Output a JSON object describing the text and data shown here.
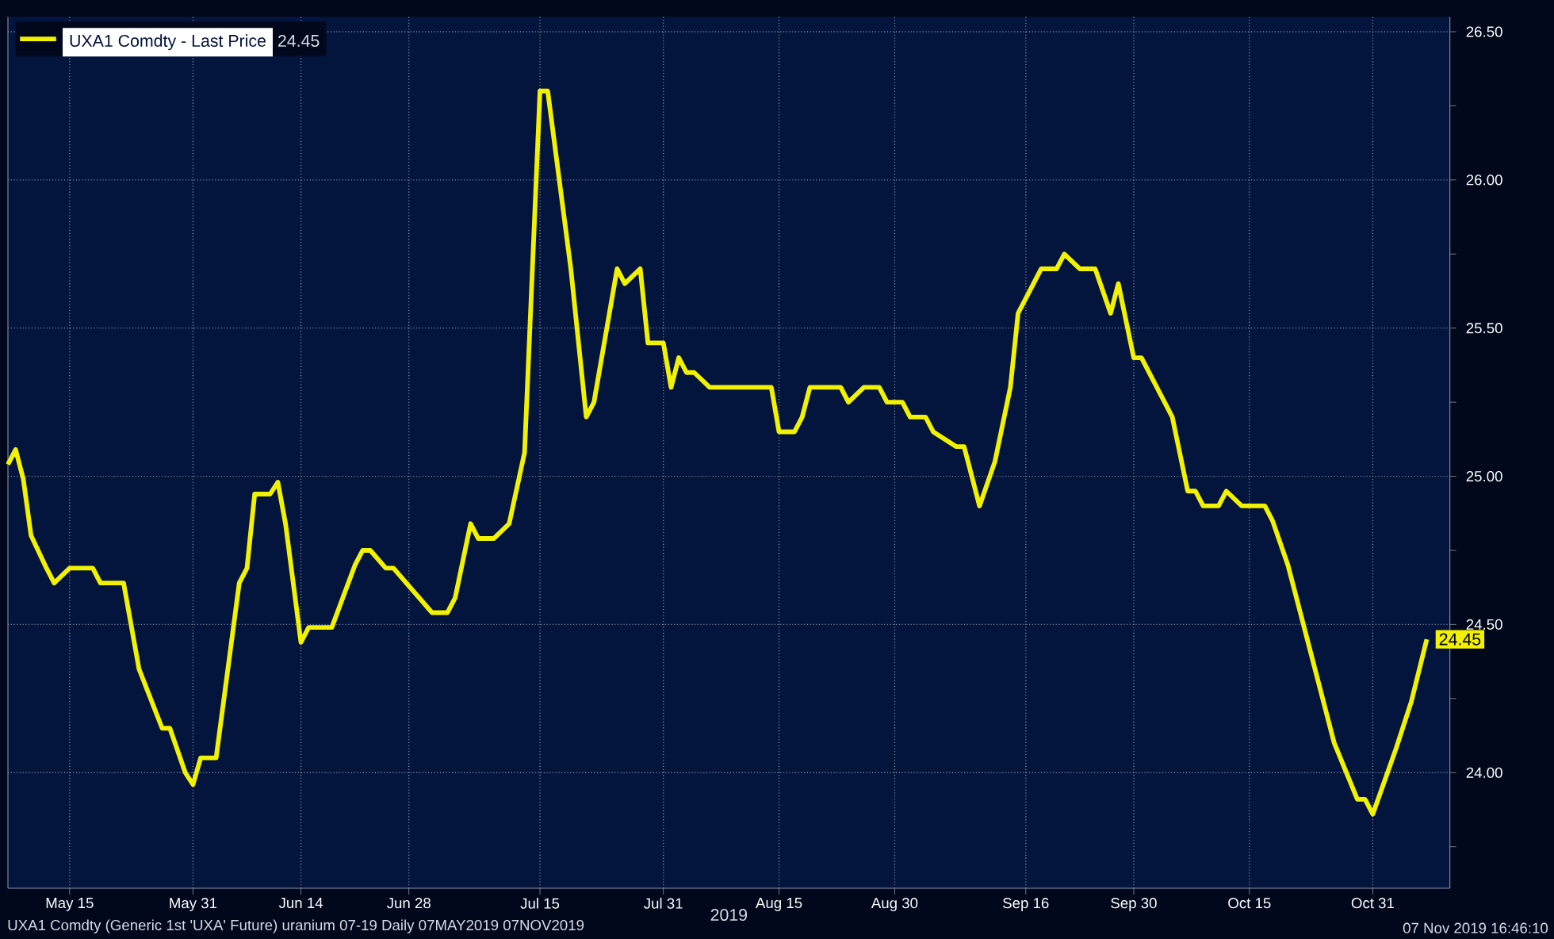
{
  "chart_data": {
    "type": "line",
    "xlabel": "2019",
    "legend": "top left",
    "grid": true,
    "xlim": [
      "2019-05-07",
      "2019-11-10"
    ],
    "ylim": [
      23.61,
      26.55
    ],
    "xticks": [
      {
        "value": "2019-05-15",
        "label": "May 15"
      },
      {
        "value": "2019-05-31",
        "label": "May 31"
      },
      {
        "value": "2019-06-14",
        "label": "Jun 14"
      },
      {
        "value": "2019-06-28",
        "label": "Jun 28"
      },
      {
        "value": "2019-07-15",
        "label": "Jul 15"
      },
      {
        "value": "2019-07-31",
        "label": "Jul 31"
      },
      {
        "value": "2019-08-15",
        "label": "Aug 15"
      },
      {
        "value": "2019-08-30",
        "label": "Aug 30"
      },
      {
        "value": "2019-09-16",
        "label": "Sep 16"
      },
      {
        "value": "2019-09-30",
        "label": "Sep 30"
      },
      {
        "value": "2019-10-15",
        "label": "Oct 15"
      },
      {
        "value": "2019-10-31",
        "label": "Oct 31"
      }
    ],
    "yticks": [
      {
        "value": 23.75,
        "label": null
      },
      {
        "value": 24,
        "label": "24.00"
      },
      {
        "value": 24.25,
        "label": null
      },
      {
        "value": 24.5,
        "label": "24.50"
      },
      {
        "value": 24.75,
        "label": null
      },
      {
        "value": 25,
        "label": "25.00"
      },
      {
        "value": 25.25,
        "label": null
      },
      {
        "value": 25.5,
        "label": "25.50"
      },
      {
        "value": 25.75,
        "label": null
      },
      {
        "value": 26,
        "label": "26.00"
      },
      {
        "value": 26.25,
        "label": null
      },
      {
        "value": 26.5,
        "label": "26.50"
      }
    ],
    "annotations": [
      "UXA1 Comdty (Generic 1st 'UXA' Future) uranium 07-19  Daily 07MAY2019 07NOV2019",
      "07 Nov 2019 16:46:10"
    ],
    "series": [
      {
        "name": "UXA1 Comdty - Last Price",
        "color": "#f2f200",
        "x": [
          "2019-05-07",
          "2019-05-08",
          "2019-05-09",
          "2019-05-10",
          "2019-05-12",
          "2019-05-13",
          "2019-05-15",
          "2019-05-18",
          "2019-05-19",
          "2019-05-22",
          "2019-05-24",
          "2019-05-27",
          "2019-05-28",
          "2019-05-30",
          "2019-05-31",
          "2019-06-01",
          "2019-06-03",
          "2019-06-06",
          "2019-06-07",
          "2019-06-08",
          "2019-06-10",
          "2019-06-11",
          "2019-06-12",
          "2019-06-14",
          "2019-06-15",
          "2019-06-18",
          "2019-06-21",
          "2019-06-22",
          "2019-06-23",
          "2019-06-25",
          "2019-06-26",
          "2019-07-01",
          "2019-07-03",
          "2019-07-04",
          "2019-07-06",
          "2019-07-07",
          "2019-07-09",
          "2019-07-11",
          "2019-07-13",
          "2019-07-15",
          "2019-07-16",
          "2019-07-19",
          "2019-07-21",
          "2019-07-22",
          "2019-07-24",
          "2019-07-25",
          "2019-07-26",
          "2019-07-28",
          "2019-07-29",
          "2019-07-31",
          "2019-08-01",
          "2019-08-02",
          "2019-08-03",
          "2019-08-04",
          "2019-08-06",
          "2019-08-14",
          "2019-08-15",
          "2019-08-17",
          "2019-08-18",
          "2019-08-19",
          "2019-08-23",
          "2019-08-24",
          "2019-08-26",
          "2019-08-28",
          "2019-08-29",
          "2019-08-31",
          "2019-09-01",
          "2019-09-03",
          "2019-09-04",
          "2019-09-07",
          "2019-09-08",
          "2019-09-10",
          "2019-09-12",
          "2019-09-14",
          "2019-09-15",
          "2019-09-17",
          "2019-09-18",
          "2019-09-20",
          "2019-09-21",
          "2019-09-23",
          "2019-09-25",
          "2019-09-27",
          "2019-09-28",
          "2019-09-30",
          "2019-10-01",
          "2019-10-02",
          "2019-10-04",
          "2019-10-05",
          "2019-10-07",
          "2019-10-08",
          "2019-10-09",
          "2019-10-11",
          "2019-10-12",
          "2019-10-14",
          "2019-10-17",
          "2019-10-18",
          "2019-10-20",
          "2019-10-21",
          "2019-10-23",
          "2019-10-24",
          "2019-10-26",
          "2019-10-29",
          "2019-10-30",
          "2019-10-31",
          "2019-11-03",
          "2019-11-05",
          "2019-11-07"
        ],
        "values": [
          25.04,
          25.09,
          24.99,
          24.8,
          24.69,
          24.64,
          24.69,
          24.69,
          24.64,
          24.64,
          24.35,
          24.15,
          24.15,
          24.0,
          23.96,
          24.05,
          24.05,
          24.64,
          24.69,
          24.94,
          24.94,
          24.98,
          24.84,
          24.44,
          24.49,
          24.49,
          24.7,
          24.75,
          24.75,
          24.69,
          24.69,
          24.54,
          24.54,
          24.59,
          24.84,
          24.79,
          24.79,
          24.84,
          25.08,
          26.3,
          26.3,
          25.7,
          25.2,
          25.25,
          25.55,
          25.7,
          25.65,
          25.7,
          25.45,
          25.45,
          25.3,
          25.4,
          25.35,
          25.35,
          25.3,
          25.3,
          25.15,
          25.15,
          25.2,
          25.3,
          25.3,
          25.25,
          25.3,
          25.3,
          25.25,
          25.25,
          25.2,
          25.2,
          25.15,
          25.1,
          25.1,
          24.9,
          25.05,
          25.3,
          25.55,
          25.65,
          25.7,
          25.7,
          25.75,
          25.7,
          25.7,
          25.55,
          25.65,
          25.4,
          25.4,
          25.35,
          25.25,
          25.2,
          24.95,
          24.95,
          24.9,
          24.9,
          24.95,
          24.9,
          24.9,
          24.85,
          24.7,
          24.6,
          24.4,
          24.3,
          24.1,
          23.91,
          23.91,
          23.86,
          24.08,
          24.24,
          24.45
        ],
        "value_labels": [
          null,
          null,
          null,
          null,
          null,
          null,
          null,
          null,
          null,
          null,
          null,
          null,
          null,
          null,
          null,
          null,
          null,
          null,
          null,
          null,
          null,
          null,
          null,
          null,
          null,
          null,
          null,
          null,
          null,
          null,
          null,
          null,
          null,
          null,
          null,
          null,
          null,
          null,
          null,
          null,
          null,
          null,
          null,
          null,
          null,
          null,
          null,
          null,
          null,
          null,
          null,
          null,
          null,
          null,
          null,
          null,
          null,
          null,
          null,
          null,
          null,
          null,
          null,
          null,
          null,
          null,
          null,
          null,
          null,
          null,
          null,
          null,
          null,
          null,
          null,
          null,
          null,
          null,
          null,
          null,
          null,
          null,
          null,
          null,
          null,
          null,
          null,
          null,
          null,
          null,
          null,
          null,
          null,
          null,
          null,
          null,
          null,
          null,
          null,
          null,
          null,
          null,
          null,
          null,
          null,
          null,
          "24.45"
        ]
      }
    ]
  }
}
